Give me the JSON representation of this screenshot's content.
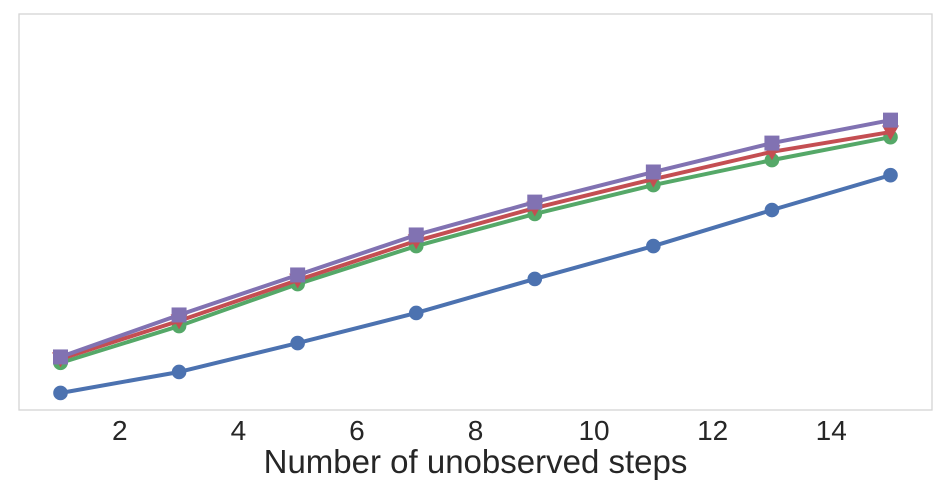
{
  "figure": {
    "background": "#ffffff",
    "frame_color": "#d4d4d4",
    "text_color": "#262626"
  },
  "chart_data": {
    "type": "line",
    "title": "",
    "xlabel": "Number of unobserved steps",
    "ylabel": "",
    "legend_position": "none",
    "grid": false,
    "x_ticks": [
      2,
      4,
      6,
      8,
      10,
      12,
      14
    ],
    "xlim": [
      0.3,
      15.7
    ],
    "y_units": "fraction of plot height above bottom axis (no y-axis tick labels are shown in the figure)",
    "x": [
      1,
      3,
      5,
      7,
      9,
      11,
      13,
      15
    ],
    "series": [
      {
        "name": "blue-circles",
        "color": "#4C72B0",
        "marker": "circle",
        "values": [
          0.043,
          0.096,
          0.169,
          0.245,
          0.331,
          0.414,
          0.505,
          0.593
        ]
      },
      {
        "name": "green-circles",
        "color": "#55A868",
        "marker": "circle",
        "values": [
          0.119,
          0.212,
          0.318,
          0.414,
          0.495,
          0.568,
          0.631,
          0.689
        ]
      },
      {
        "name": "red-triangles",
        "color": "#C44E52",
        "marker": "triangle-down",
        "values": [
          0.129,
          0.225,
          0.328,
          0.427,
          0.51,
          0.583,
          0.652,
          0.702
        ]
      },
      {
        "name": "purple-squares",
        "color": "#8172B2",
        "marker": "square",
        "values": [
          0.134,
          0.24,
          0.341,
          0.442,
          0.525,
          0.601,
          0.674,
          0.732
        ]
      }
    ]
  }
}
